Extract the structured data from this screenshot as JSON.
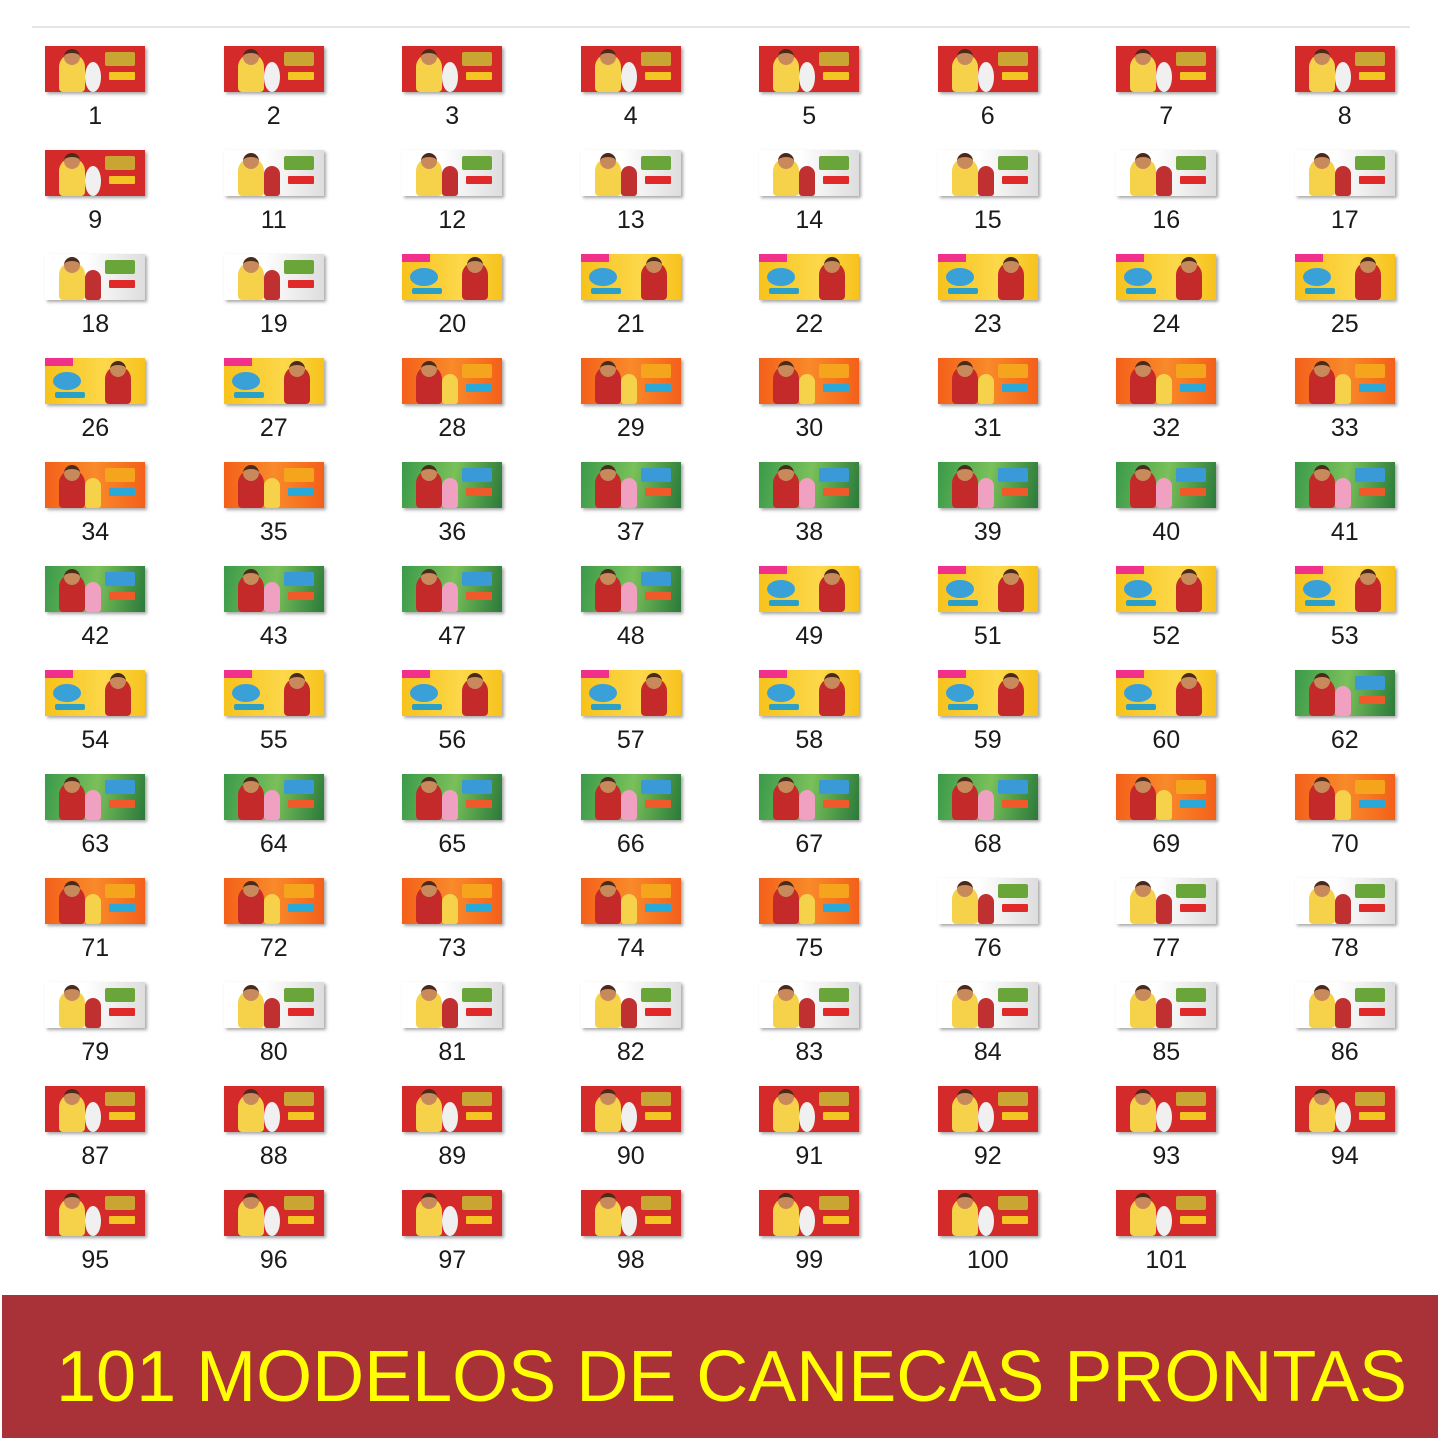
{
  "files": [
    {
      "label": "1",
      "theme": "red"
    },
    {
      "label": "2",
      "theme": "red"
    },
    {
      "label": "3",
      "theme": "red"
    },
    {
      "label": "4",
      "theme": "red"
    },
    {
      "label": "5",
      "theme": "red"
    },
    {
      "label": "6",
      "theme": "red"
    },
    {
      "label": "7",
      "theme": "red"
    },
    {
      "label": "8",
      "theme": "red"
    },
    {
      "label": "9",
      "theme": "red"
    },
    {
      "label": "11",
      "theme": "white"
    },
    {
      "label": "12",
      "theme": "white"
    },
    {
      "label": "13",
      "theme": "white"
    },
    {
      "label": "14",
      "theme": "white"
    },
    {
      "label": "15",
      "theme": "white"
    },
    {
      "label": "16",
      "theme": "white"
    },
    {
      "label": "17",
      "theme": "white"
    },
    {
      "label": "18",
      "theme": "white"
    },
    {
      "label": "19",
      "theme": "white"
    },
    {
      "label": "20",
      "theme": "yellow"
    },
    {
      "label": "21",
      "theme": "yellow"
    },
    {
      "label": "22",
      "theme": "yellow"
    },
    {
      "label": "23",
      "theme": "yellow"
    },
    {
      "label": "24",
      "theme": "yellow"
    },
    {
      "label": "25",
      "theme": "yellow"
    },
    {
      "label": "26",
      "theme": "yellow"
    },
    {
      "label": "27",
      "theme": "yellow"
    },
    {
      "label": "28",
      "theme": "orange"
    },
    {
      "label": "29",
      "theme": "orange"
    },
    {
      "label": "30",
      "theme": "orange"
    },
    {
      "label": "31",
      "theme": "orange"
    },
    {
      "label": "32",
      "theme": "orange"
    },
    {
      "label": "33",
      "theme": "orange"
    },
    {
      "label": "34",
      "theme": "orange"
    },
    {
      "label": "35",
      "theme": "orange"
    },
    {
      "label": "36",
      "theme": "green"
    },
    {
      "label": "37",
      "theme": "green"
    },
    {
      "label": "38",
      "theme": "green"
    },
    {
      "label": "39",
      "theme": "green"
    },
    {
      "label": "40",
      "theme": "green"
    },
    {
      "label": "41",
      "theme": "green"
    },
    {
      "label": "42",
      "theme": "green"
    },
    {
      "label": "43",
      "theme": "green"
    },
    {
      "label": "47",
      "theme": "green"
    },
    {
      "label": "48",
      "theme": "green"
    },
    {
      "label": "49",
      "theme": "yellow"
    },
    {
      "label": "51",
      "theme": "yellow"
    },
    {
      "label": "52",
      "theme": "yellow"
    },
    {
      "label": "53",
      "theme": "yellow"
    },
    {
      "label": "54",
      "theme": "yellow"
    },
    {
      "label": "55",
      "theme": "yellow"
    },
    {
      "label": "56",
      "theme": "yellow"
    },
    {
      "label": "57",
      "theme": "yellow"
    },
    {
      "label": "58",
      "theme": "yellow"
    },
    {
      "label": "59",
      "theme": "yellow"
    },
    {
      "label": "60",
      "theme": "yellow"
    },
    {
      "label": "62",
      "theme": "green"
    },
    {
      "label": "63",
      "theme": "green"
    },
    {
      "label": "64",
      "theme": "green"
    },
    {
      "label": "65",
      "theme": "green"
    },
    {
      "label": "66",
      "theme": "green"
    },
    {
      "label": "67",
      "theme": "green"
    },
    {
      "label": "68",
      "theme": "green"
    },
    {
      "label": "69",
      "theme": "orange"
    },
    {
      "label": "70",
      "theme": "orange"
    },
    {
      "label": "71",
      "theme": "orange"
    },
    {
      "label": "72",
      "theme": "orange"
    },
    {
      "label": "73",
      "theme": "orange"
    },
    {
      "label": "74",
      "theme": "orange"
    },
    {
      "label": "75",
      "theme": "orange"
    },
    {
      "label": "76",
      "theme": "white"
    },
    {
      "label": "77",
      "theme": "white"
    },
    {
      "label": "78",
      "theme": "white"
    },
    {
      "label": "79",
      "theme": "white"
    },
    {
      "label": "80",
      "theme": "white"
    },
    {
      "label": "81",
      "theme": "white"
    },
    {
      "label": "82",
      "theme": "white"
    },
    {
      "label": "83",
      "theme": "white"
    },
    {
      "label": "84",
      "theme": "white"
    },
    {
      "label": "85",
      "theme": "white"
    },
    {
      "label": "86",
      "theme": "white"
    },
    {
      "label": "87",
      "theme": "red"
    },
    {
      "label": "88",
      "theme": "red"
    },
    {
      "label": "89",
      "theme": "red"
    },
    {
      "label": "90",
      "theme": "red"
    },
    {
      "label": "91",
      "theme": "red"
    },
    {
      "label": "92",
      "theme": "red"
    },
    {
      "label": "93",
      "theme": "red"
    },
    {
      "label": "94",
      "theme": "red"
    },
    {
      "label": "95",
      "theme": "red"
    },
    {
      "label": "96",
      "theme": "red"
    },
    {
      "label": "97",
      "theme": "red"
    },
    {
      "label": "98",
      "theme": "red"
    },
    {
      "label": "99",
      "theme": "red"
    },
    {
      "label": "100",
      "theme": "red"
    },
    {
      "label": "101",
      "theme": "red"
    }
  ],
  "banner": {
    "text": "101 MODELOS DE CANECAS PRONTAS",
    "background": "#a83238",
    "color": "#ffff00"
  }
}
